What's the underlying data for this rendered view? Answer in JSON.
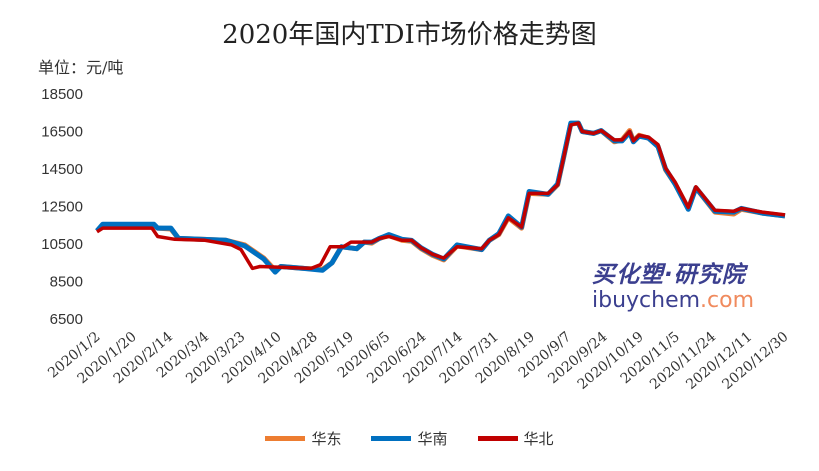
{
  "chart_data": {
    "type": "line",
    "title": "2020年国内TDI市场价格走势图",
    "unit_label": "单位：元/吨",
    "ylim": [
      6500,
      18500
    ],
    "yticks": [
      6500,
      8500,
      10500,
      12500,
      14500,
      16500,
      18500
    ],
    "xlim": [
      "2020-01-02",
      "2020-12-30"
    ],
    "xticks": [
      "2020/1/2",
      "2020/1/20",
      "2020/2/14",
      "2020/3/4",
      "2020/3/23",
      "2020/4/10",
      "2020/4/28",
      "2020/5/19",
      "2020/6/5",
      "2020/6/24",
      "2020/7/14",
      "2020/7/31",
      "2020/8/19",
      "2020/9/7",
      "2020/9/24",
      "2020/10/19",
      "2020/11/5",
      "2020/11/24",
      "2020/12/11",
      "2020/12/30"
    ],
    "grid": false,
    "legend": "bottom",
    "series": [
      {
        "name": "华东",
        "color": "#ed7d31",
        "points": [
          [
            "2020-01-02",
            11200
          ],
          [
            "2020-01-05",
            11500
          ],
          [
            "2020-02-01",
            11500
          ],
          [
            "2020-02-03",
            11350
          ],
          [
            "2020-02-10",
            11300
          ],
          [
            "2020-02-14",
            10800
          ],
          [
            "2020-03-10",
            10700
          ],
          [
            "2020-03-20",
            10450
          ],
          [
            "2020-03-30",
            9750
          ],
          [
            "2020-04-05",
            9100
          ],
          [
            "2020-04-08",
            9300
          ],
          [
            "2020-04-20",
            9200
          ],
          [
            "2020-04-30",
            9150
          ],
          [
            "2020-05-05",
            9500
          ],
          [
            "2020-05-10",
            10350
          ],
          [
            "2020-05-18",
            10250
          ],
          [
            "2020-05-22",
            10600
          ],
          [
            "2020-05-26",
            10550
          ],
          [
            "2020-05-30",
            10800
          ],
          [
            "2020-06-04",
            10950
          ],
          [
            "2020-06-11",
            10700
          ],
          [
            "2020-06-16",
            10650
          ],
          [
            "2020-06-21",
            10250
          ],
          [
            "2020-06-27",
            9900
          ],
          [
            "2020-07-03",
            9650
          ],
          [
            "2020-07-10",
            10400
          ],
          [
            "2020-07-23",
            10200
          ],
          [
            "2020-07-27",
            10700
          ],
          [
            "2020-08-01",
            11000
          ],
          [
            "2020-08-06",
            11900
          ],
          [
            "2020-08-13",
            11350
          ],
          [
            "2020-08-17",
            13200
          ],
          [
            "2020-08-27",
            13150
          ],
          [
            "2020-09-01",
            13650
          ],
          [
            "2020-09-04",
            15000
          ],
          [
            "2020-09-08",
            16900
          ],
          [
            "2020-09-12",
            16950
          ],
          [
            "2020-09-14",
            16500
          ],
          [
            "2020-09-20",
            16400
          ],
          [
            "2020-09-24",
            16550
          ],
          [
            "2020-10-01",
            15950
          ],
          [
            "2020-10-05",
            16050
          ],
          [
            "2020-10-09",
            16550
          ],
          [
            "2020-10-11",
            16000
          ],
          [
            "2020-10-14",
            16300
          ],
          [
            "2020-10-19",
            16150
          ],
          [
            "2020-10-24",
            15700
          ],
          [
            "2020-10-28",
            14450
          ],
          [
            "2020-11-02",
            13700
          ],
          [
            "2020-11-09",
            12400
          ],
          [
            "2020-11-13",
            13500
          ],
          [
            "2020-11-23",
            12200
          ],
          [
            "2020-12-03",
            12100
          ],
          [
            "2020-12-07",
            12350
          ],
          [
            "2020-12-18",
            12150
          ],
          [
            "2020-12-30",
            12000
          ]
        ]
      },
      {
        "name": "华南",
        "color": "#0070c0",
        "points": [
          [
            "2020-01-02",
            11200
          ],
          [
            "2020-01-05",
            11550
          ],
          [
            "2020-02-01",
            11550
          ],
          [
            "2020-02-03",
            11350
          ],
          [
            "2020-02-10",
            11350
          ],
          [
            "2020-02-14",
            10800
          ],
          [
            "2020-03-10",
            10700
          ],
          [
            "2020-03-20",
            10400
          ],
          [
            "2020-03-30",
            9700
          ],
          [
            "2020-04-05",
            9000
          ],
          [
            "2020-04-08",
            9300
          ],
          [
            "2020-04-20",
            9200
          ],
          [
            "2020-04-30",
            9100
          ],
          [
            "2020-05-05",
            9500
          ],
          [
            "2020-05-10",
            10350
          ],
          [
            "2020-05-18",
            10250
          ],
          [
            "2020-05-22",
            10600
          ],
          [
            "2020-05-26",
            10600
          ],
          [
            "2020-05-30",
            10800
          ],
          [
            "2020-06-04",
            11000
          ],
          [
            "2020-06-11",
            10750
          ],
          [
            "2020-06-16",
            10700
          ],
          [
            "2020-06-21",
            10300
          ],
          [
            "2020-06-27",
            9950
          ],
          [
            "2020-07-03",
            9700
          ],
          [
            "2020-07-10",
            10450
          ],
          [
            "2020-07-23",
            10200
          ],
          [
            "2020-07-27",
            10700
          ],
          [
            "2020-08-01",
            11050
          ],
          [
            "2020-08-06",
            12000
          ],
          [
            "2020-08-13",
            11400
          ],
          [
            "2020-08-17",
            13300
          ],
          [
            "2020-08-27",
            13150
          ],
          [
            "2020-09-01",
            13700
          ],
          [
            "2020-09-04",
            15050
          ],
          [
            "2020-09-08",
            16950
          ],
          [
            "2020-09-12",
            16950
          ],
          [
            "2020-09-14",
            16500
          ],
          [
            "2020-09-20",
            16400
          ],
          [
            "2020-09-24",
            16550
          ],
          [
            "2020-10-01",
            16000
          ],
          [
            "2020-10-05",
            16000
          ],
          [
            "2020-10-09",
            16450
          ],
          [
            "2020-10-11",
            15950
          ],
          [
            "2020-10-14",
            16250
          ],
          [
            "2020-10-19",
            16150
          ],
          [
            "2020-10-24",
            15700
          ],
          [
            "2020-10-28",
            14500
          ],
          [
            "2020-11-02",
            13700
          ],
          [
            "2020-11-09",
            12350
          ],
          [
            "2020-11-13",
            13500
          ],
          [
            "2020-11-23",
            12250
          ],
          [
            "2020-12-03",
            12200
          ],
          [
            "2020-12-07",
            12400
          ],
          [
            "2020-12-18",
            12150
          ],
          [
            "2020-12-30",
            12000
          ]
        ]
      },
      {
        "name": "华北",
        "color": "#c00000",
        "points": [
          [
            "2020-01-02",
            11150
          ],
          [
            "2020-01-05",
            11350
          ],
          [
            "2020-01-31",
            11350
          ],
          [
            "2020-02-03",
            10900
          ],
          [
            "2020-02-12",
            10750
          ],
          [
            "2020-02-28",
            10700
          ],
          [
            "2020-03-13",
            10450
          ],
          [
            "2020-03-18",
            10200
          ],
          [
            "2020-03-24",
            9200
          ],
          [
            "2020-03-28",
            9300
          ],
          [
            "2020-04-24",
            9200
          ],
          [
            "2020-04-29",
            9400
          ],
          [
            "2020-05-04",
            10350
          ],
          [
            "2020-05-11",
            10350
          ],
          [
            "2020-05-15",
            10600
          ],
          [
            "2020-05-26",
            10600
          ],
          [
            "2020-05-30",
            10800
          ],
          [
            "2020-06-04",
            10900
          ],
          [
            "2020-06-11",
            10700
          ],
          [
            "2020-06-16",
            10700
          ],
          [
            "2020-06-21",
            10300
          ],
          [
            "2020-06-27",
            9950
          ],
          [
            "2020-07-03",
            9750
          ],
          [
            "2020-07-10",
            10350
          ],
          [
            "2020-07-23",
            10250
          ],
          [
            "2020-07-27",
            10700
          ],
          [
            "2020-08-01",
            11000
          ],
          [
            "2020-08-06",
            11900
          ],
          [
            "2020-08-13",
            11400
          ],
          [
            "2020-08-17",
            13200
          ],
          [
            "2020-08-27",
            13200
          ],
          [
            "2020-09-01",
            13650
          ],
          [
            "2020-09-04",
            15000
          ],
          [
            "2020-09-08",
            16850
          ],
          [
            "2020-09-12",
            16950
          ],
          [
            "2020-09-14",
            16500
          ],
          [
            "2020-09-20",
            16400
          ],
          [
            "2020-09-24",
            16550
          ],
          [
            "2020-10-01",
            16050
          ],
          [
            "2020-10-05",
            16050
          ],
          [
            "2020-10-09",
            16500
          ],
          [
            "2020-10-11",
            16000
          ],
          [
            "2020-10-14",
            16300
          ],
          [
            "2020-10-19",
            16200
          ],
          [
            "2020-10-24",
            15800
          ],
          [
            "2020-10-28",
            14550
          ],
          [
            "2020-11-02",
            13800
          ],
          [
            "2020-11-09",
            12450
          ],
          [
            "2020-11-13",
            13550
          ],
          [
            "2020-11-23",
            12300
          ],
          [
            "2020-12-03",
            12250
          ],
          [
            "2020-12-07",
            12400
          ],
          [
            "2020-12-18",
            12200
          ],
          [
            "2020-12-30",
            12050
          ]
        ]
      }
    ]
  },
  "watermark": {
    "brand_cn": "买化塑·研究院",
    "brand_en": "ibuychem",
    ".com": ".com",
    "domain_suffix": ".com"
  }
}
